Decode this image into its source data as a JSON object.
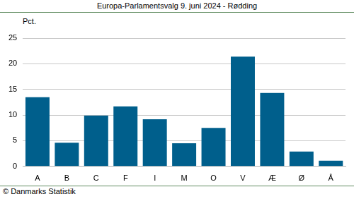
{
  "chart_data": {
    "type": "bar",
    "title": "Europa-Parlamentsvalg 9. juni 2024 - Rødding",
    "y_label": "Pct.",
    "source": "© Danmarks Statistik",
    "categories": [
      "A",
      "B",
      "C",
      "F",
      "I",
      "M",
      "O",
      "V",
      "Æ",
      "Ø",
      "Å"
    ],
    "values": [
      13.5,
      4.6,
      9.9,
      11.7,
      9.2,
      4.5,
      7.5,
      21.4,
      14.3,
      2.9,
      1.1
    ],
    "color": "#005f8c",
    "ylim": [
      0,
      25
    ],
    "yticks": [
      0,
      5,
      10,
      15,
      20,
      25
    ],
    "grid": true
  }
}
